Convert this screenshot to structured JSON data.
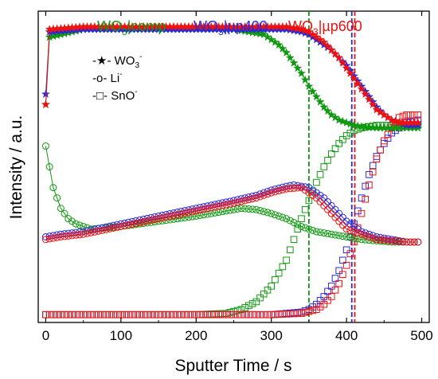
{
  "chart_data": {
    "type": "scatter",
    "title": "",
    "xlabel": "Sputter Time / s",
    "ylabel": "Intensity / a.u.",
    "xlim": [
      -10,
      510
    ],
    "ylim": [
      0,
      1.2
    ],
    "xticks": [
      0,
      100,
      200,
      300,
      400,
      500
    ],
    "xtick_labels": [
      "0",
      "100",
      "200",
      "300",
      "400",
      "500"
    ],
    "yticks_visible": false,
    "grid": false,
    "series_titles": [
      {
        "label": "WO3|comp",
        "base": "WO",
        "sub": "3",
        "tail": "|comp",
        "color": "#119911"
      },
      {
        "label": "WO3|µp400",
        "base": "WO",
        "sub": "3",
        "tail": "|µp400",
        "color": "#2a2ad8"
      },
      {
        "label": "WO3|µp600",
        "base": "WO",
        "sub": "3",
        "tail": "|µp600",
        "color": "#ee1111"
      }
    ],
    "legend": {
      "placement": "top-left",
      "entries": [
        {
          "label": "WO3-",
          "marker_text": "-★-",
          "base": "WO",
          "sub": "3",
          "sup": "-"
        },
        {
          "label": "Li-",
          "marker_text": "-o-",
          "base": "Li",
          "sub": "",
          "sup": "-"
        },
        {
          "label": "SnO-",
          "marker_text": "-□-",
          "base": "SnO",
          "sub": "",
          "sup": "-"
        }
      ]
    },
    "vlines": [
      {
        "x": 350,
        "color": "#119911",
        "style": "dashed"
      },
      {
        "x": 407,
        "color": "#2a2ad8",
        "style": "dashed"
      },
      {
        "x": 411,
        "color": "#ee1111",
        "style": "dashed"
      }
    ],
    "species": {
      "WO3": {
        "marker": "star",
        "connected": true
      },
      "Li": {
        "marker": "circle",
        "connected": true
      },
      "SnO": {
        "marker": "square",
        "connected": false
      }
    },
    "samples": {
      "comp": {
        "color": "#119911",
        "WO3": {
          "x": [
            0,
            5,
            50,
            100,
            150,
            200,
            250,
            270,
            290,
            300,
            310,
            320,
            330,
            340,
            350,
            360,
            370,
            380,
            390,
            400,
            410,
            420,
            430,
            440,
            460,
            480,
            495
          ],
          "y": [
            0.84,
            1.1,
            1.13,
            1.13,
            1.13,
            1.13,
            1.13,
            1.12,
            1.11,
            1.09,
            1.07,
            1.04,
            1.0,
            0.96,
            0.91,
            0.87,
            0.83,
            0.8,
            0.78,
            0.77,
            0.76,
            0.755,
            0.752,
            0.75,
            0.75,
            0.75,
            0.75
          ]
        },
        "Li": {
          "x": [
            0,
            5,
            10,
            20,
            30,
            40,
            60,
            100,
            150,
            200,
            240,
            260,
            280,
            300,
            320,
            340,
            360,
            380,
            400,
            420,
            440,
            460,
            480,
            495
          ],
          "y": [
            0.68,
            0.6,
            0.52,
            0.44,
            0.4,
            0.38,
            0.36,
            0.37,
            0.39,
            0.41,
            0.43,
            0.44,
            0.435,
            0.42,
            0.4,
            0.37,
            0.35,
            0.34,
            0.33,
            0.32,
            0.315,
            0.31,
            0.31,
            0.31
          ]
        },
        "SnO": {
          "x": [
            0,
            50,
            100,
            150,
            200,
            240,
            260,
            280,
            300,
            320,
            330,
            340,
            350,
            360,
            370,
            380,
            390,
            400,
            410,
            420,
            440,
            460,
            480,
            495
          ],
          "y": [
            0.03,
            0.03,
            0.03,
            0.03,
            0.03,
            0.035,
            0.05,
            0.08,
            0.14,
            0.24,
            0.32,
            0.4,
            0.47,
            0.54,
            0.6,
            0.65,
            0.69,
            0.72,
            0.74,
            0.75,
            0.76,
            0.76,
            0.76,
            0.76
          ]
        }
      },
      "p400": {
        "color": "#2a2ad8",
        "WO3": {
          "x": [
            0,
            5,
            50,
            100,
            150,
            200,
            250,
            300,
            320,
            340,
            350,
            360,
            370,
            380,
            390,
            400,
            410,
            420,
            430,
            440,
            450,
            460,
            470,
            480,
            495
          ],
          "y": [
            0.88,
            1.12,
            1.13,
            1.13,
            1.13,
            1.13,
            1.13,
            1.13,
            1.13,
            1.12,
            1.11,
            1.09,
            1.07,
            1.05,
            1.02,
            0.99,
            0.95,
            0.91,
            0.87,
            0.83,
            0.8,
            0.78,
            0.77,
            0.76,
            0.76
          ]
        },
        "Li": {
          "x": [
            0,
            20,
            50,
            100,
            150,
            200,
            250,
            280,
            300,
            320,
            330,
            340,
            350,
            360,
            370,
            380,
            390,
            400,
            420,
            440,
            460,
            480,
            495
          ],
          "y": [
            0.33,
            0.34,
            0.35,
            0.38,
            0.41,
            0.44,
            0.47,
            0.49,
            0.51,
            0.525,
            0.53,
            0.525,
            0.52,
            0.5,
            0.48,
            0.45,
            0.42,
            0.39,
            0.35,
            0.33,
            0.32,
            0.31,
            0.31
          ]
        },
        "SnO": {
          "x": [
            0,
            100,
            200,
            300,
            320,
            340,
            350,
            360,
            370,
            380,
            390,
            400,
            410,
            420,
            430,
            440,
            450,
            460,
            470,
            480,
            495
          ],
          "y": [
            0.03,
            0.03,
            0.03,
            0.03,
            0.035,
            0.04,
            0.05,
            0.07,
            0.1,
            0.14,
            0.2,
            0.28,
            0.38,
            0.48,
            0.57,
            0.64,
            0.69,
            0.73,
            0.75,
            0.77,
            0.78
          ]
        }
      },
      "p600": {
        "color": "#ee1111",
        "WO3": {
          "x": [
            0,
            5,
            50,
            100,
            150,
            200,
            250,
            300,
            320,
            340,
            350,
            360,
            370,
            380,
            390,
            400,
            410,
            420,
            430,
            440,
            450,
            460,
            470,
            480,
            495
          ],
          "y": [
            0.84,
            1.13,
            1.14,
            1.14,
            1.14,
            1.14,
            1.14,
            1.14,
            1.14,
            1.13,
            1.12,
            1.1,
            1.08,
            1.05,
            1.02,
            0.98,
            0.94,
            0.9,
            0.86,
            0.82,
            0.8,
            0.78,
            0.77,
            0.77,
            0.77
          ]
        },
        "Li": {
          "x": [
            0,
            20,
            50,
            100,
            150,
            200,
            250,
            280,
            300,
            320,
            340,
            350,
            360,
            370,
            380,
            390,
            400,
            420,
            440,
            460,
            480,
            495
          ],
          "y": [
            0.32,
            0.33,
            0.34,
            0.37,
            0.4,
            0.43,
            0.46,
            0.48,
            0.5,
            0.515,
            0.52,
            0.5,
            0.48,
            0.45,
            0.42,
            0.39,
            0.36,
            0.34,
            0.32,
            0.315,
            0.31,
            0.31
          ]
        },
        "SnO": {
          "x": [
            0,
            100,
            200,
            300,
            340,
            360,
            370,
            380,
            390,
            400,
            410,
            420,
            430,
            440,
            450,
            460,
            470,
            480,
            495
          ],
          "y": [
            0.03,
            0.03,
            0.03,
            0.03,
            0.035,
            0.05,
            0.07,
            0.1,
            0.15,
            0.22,
            0.31,
            0.42,
            0.53,
            0.63,
            0.7,
            0.75,
            0.79,
            0.8,
            0.8
          ]
        }
      }
    }
  }
}
